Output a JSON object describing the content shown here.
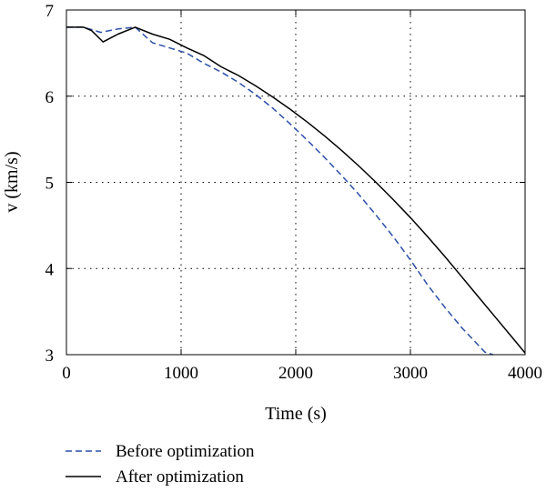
{
  "chart_data": {
    "type": "line",
    "xlabel": "Time (s)",
    "ylabel": "v (km/s)",
    "xlim": [
      0,
      4000
    ],
    "ylim": [
      3,
      7
    ],
    "xticks": [
      0,
      1000,
      2000,
      3000,
      4000
    ],
    "yticks": [
      3,
      4,
      5,
      6,
      7
    ],
    "grid": true,
    "legend_position": "bottom",
    "series": [
      {
        "name": "Before optimization",
        "color": "#2b4fa8",
        "style": "dashed",
        "x": [
          0,
          150,
          300,
          450,
          600,
          750,
          900,
          1050,
          1200,
          1350,
          1500,
          1650,
          1800,
          1950,
          2100,
          2250,
          2400,
          2550,
          2700,
          2850,
          3000,
          3150,
          3300,
          3450,
          3550,
          3650,
          3720
        ],
        "y": [
          6.8,
          6.8,
          6.74,
          6.78,
          6.8,
          6.62,
          6.56,
          6.5,
          6.38,
          6.28,
          6.16,
          6.02,
          5.86,
          5.68,
          5.49,
          5.29,
          5.08,
          4.86,
          4.62,
          4.37,
          4.1,
          3.81,
          3.55,
          3.31,
          3.17,
          3.03,
          3.0
        ]
      },
      {
        "name": "After optimization",
        "color": "#000000",
        "style": "solid",
        "x": [
          0,
          150,
          220,
          320,
          450,
          600,
          750,
          900,
          1050,
          1200,
          1350,
          1500,
          1650,
          1800,
          1950,
          2100,
          2250,
          2400,
          2550,
          2700,
          2850,
          3000,
          3150,
          3300,
          3450,
          3600,
          3750,
          3900,
          4000
        ],
        "y": [
          6.8,
          6.8,
          6.76,
          6.63,
          6.72,
          6.8,
          6.72,
          6.66,
          6.56,
          6.47,
          6.34,
          6.24,
          6.12,
          5.99,
          5.85,
          5.7,
          5.54,
          5.37,
          5.19,
          5.0,
          4.8,
          4.59,
          4.37,
          4.14,
          3.9,
          3.66,
          3.42,
          3.18,
          3.02
        ]
      }
    ]
  }
}
